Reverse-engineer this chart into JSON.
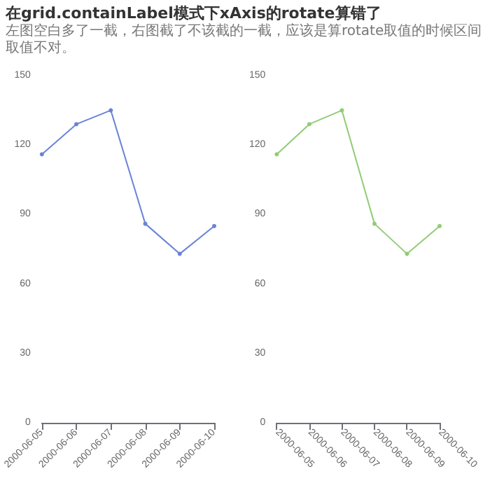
{
  "chart_data": [
    {
      "type": "line",
      "title": "在grid.containLabel模式下xAxis的rotate算错了",
      "subtitle": "左图空白多了一截，右图截了不该截的一截，应该是算rotate取值的时候区间取值不对。",
      "categories": [
        "2000-06-05",
        "2000-06-06",
        "2000-06-07",
        "2000-06-08",
        "2000-06-09",
        "2000-06-10"
      ],
      "series": [
        {
          "color": "#6a83d8",
          "values": [
            116,
            129,
            135,
            86,
            73,
            85
          ]
        }
      ],
      "ylim": [
        0,
        150
      ],
      "yticks": [
        0,
        30,
        60,
        90,
        120,
        150
      ],
      "grid": false,
      "marker": "circle",
      "line_style": "solid"
    },
    {
      "type": "line",
      "categories": [
        "2000-06-05",
        "2000-06-06",
        "2000-06-07",
        "2000-06-08",
        "2000-06-09",
        "2000-06-10"
      ],
      "series": [
        {
          "color": "#91cc75",
          "values": [
            116,
            129,
            135,
            86,
            73,
            85
          ]
        }
      ],
      "ylim": [
        0,
        150
      ],
      "yticks": [
        0,
        30,
        60,
        90,
        120,
        150
      ],
      "grid": false,
      "marker": "circle",
      "line_style": "solid"
    }
  ]
}
